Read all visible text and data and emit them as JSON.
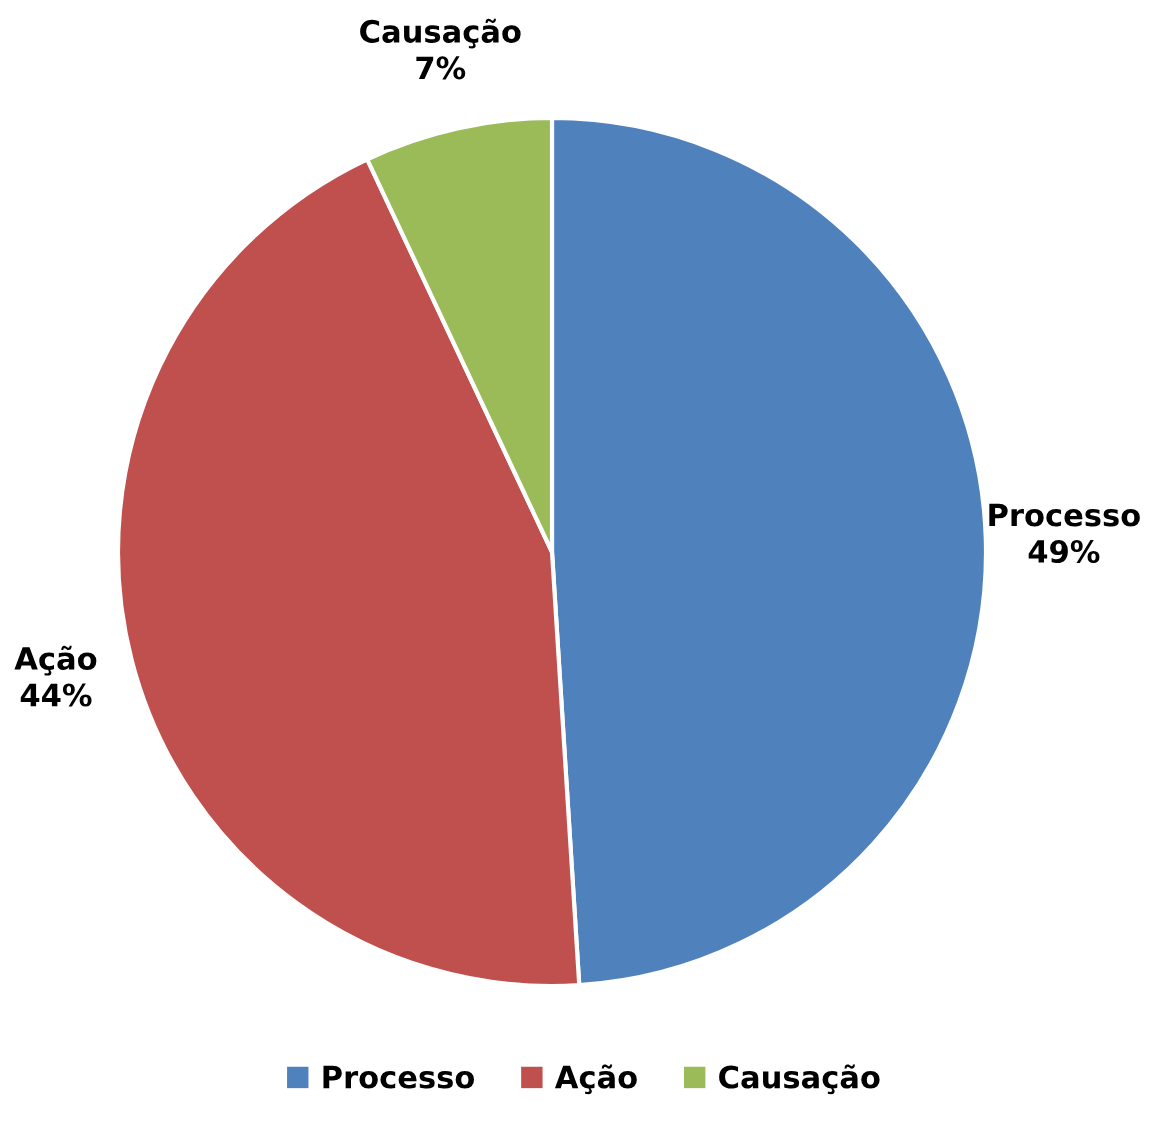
{
  "chart_data": {
    "type": "pie",
    "categories": [
      "Processo",
      "Ação",
      "Causação"
    ],
    "values": [
      49,
      44,
      7
    ],
    "colors": [
      "#4f81bd",
      "#c0504d",
      "#9bbb59"
    ],
    "value_labels": [
      "49%",
      "44%",
      "7%"
    ],
    "legend": "bottom"
  }
}
